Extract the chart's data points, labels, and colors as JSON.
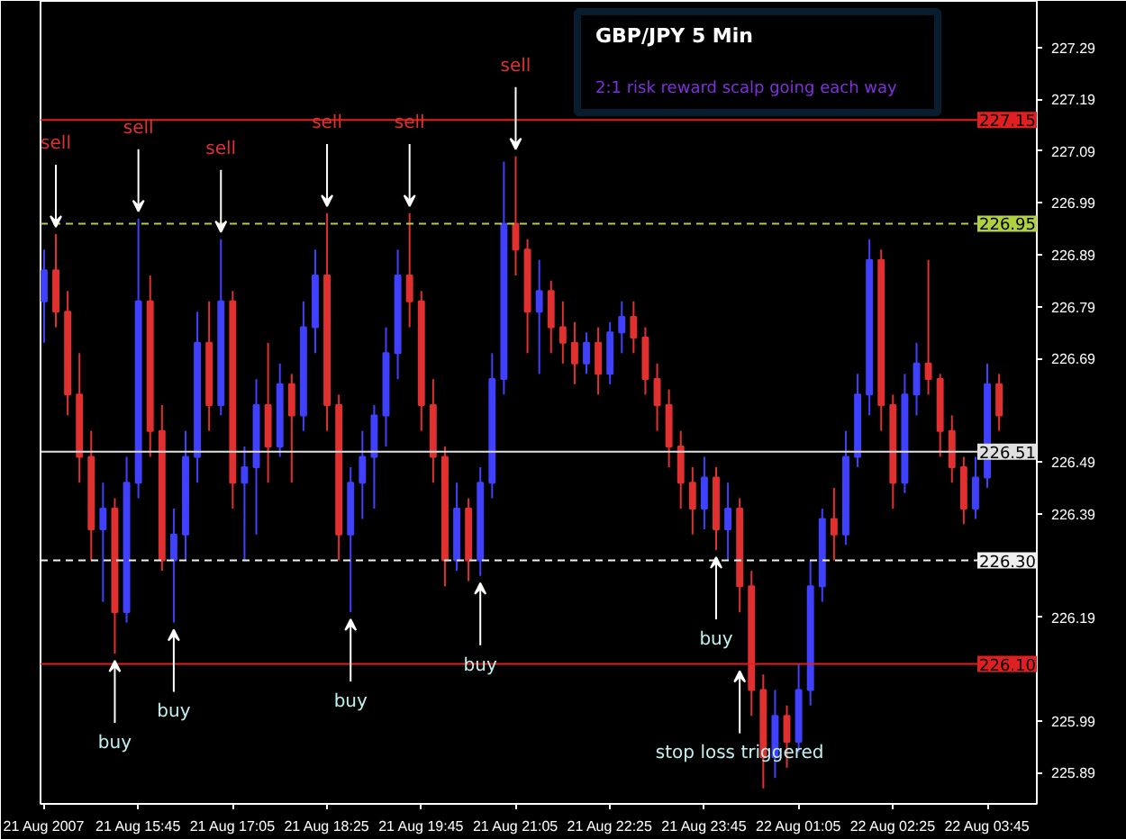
{
  "chart_data": {
    "type": "candlestick",
    "title": "GBP/JPY 5 Min",
    "subtitle": "2:1 risk reward scalp going each way",
    "x": [
      "2007-08-21T14:25",
      "2007-08-21T14:35",
      "2007-08-21T14:45",
      "2007-08-21T14:55",
      "2007-08-21T15:05",
      "2007-08-21T15:15",
      "2007-08-21T15:25",
      "2007-08-21T15:35",
      "2007-08-21T15:45",
      "2007-08-21T15:55",
      "2007-08-21T16:05",
      "2007-08-21T16:15",
      "2007-08-21T16:25",
      "2007-08-21T16:35",
      "2007-08-21T16:45",
      "2007-08-21T16:55",
      "2007-08-21T17:05",
      "2007-08-21T17:15",
      "2007-08-21T17:25",
      "2007-08-21T17:35",
      "2007-08-21T17:45",
      "2007-08-21T17:55",
      "2007-08-21T18:05",
      "2007-08-21T18:15",
      "2007-08-21T18:25",
      "2007-08-21T18:35",
      "2007-08-21T18:45",
      "2007-08-21T18:55",
      "2007-08-21T19:05",
      "2007-08-21T19:15",
      "2007-08-21T19:25",
      "2007-08-21T19:35",
      "2007-08-21T19:45",
      "2007-08-21T19:55",
      "2007-08-21T20:05",
      "2007-08-21T20:15",
      "2007-08-21T20:25",
      "2007-08-21T20:35",
      "2007-08-21T20:45",
      "2007-08-21T20:55",
      "2007-08-21T21:05",
      "2007-08-21T21:15",
      "2007-08-21T21:25",
      "2007-08-21T21:35",
      "2007-08-21T21:45",
      "2007-08-21T21:55",
      "2007-08-21T22:05",
      "2007-08-21T22:15",
      "2007-08-21T22:25",
      "2007-08-21T22:35",
      "2007-08-21T22:45",
      "2007-08-21T22:55",
      "2007-08-21T23:05",
      "2007-08-21T23:15",
      "2007-08-21T23:25",
      "2007-08-21T23:35",
      "2007-08-21T23:45",
      "2007-08-21T23:55",
      "2007-08-22T00:05",
      "2007-08-22T00:15",
      "2007-08-22T00:25",
      "2007-08-22T00:35",
      "2007-08-22T00:45",
      "2007-08-22T00:55",
      "2007-08-22T01:05",
      "2007-08-22T01:15",
      "2007-08-22T01:25",
      "2007-08-22T01:35",
      "2007-08-22T01:45",
      "2007-08-22T01:55",
      "2007-08-22T02:05",
      "2007-08-22T02:15",
      "2007-08-22T02:25",
      "2007-08-22T02:35",
      "2007-08-22T02:45",
      "2007-08-22T02:55",
      "2007-08-22T03:05",
      "2007-08-22T03:15",
      "2007-08-22T03:25",
      "2007-08-22T03:35",
      "2007-08-22T03:45",
      "2007-08-22T03:55"
    ],
    "ohlc": [
      [
        226.8,
        226.9,
        226.72,
        226.86
      ],
      [
        226.86,
        226.93,
        226.75,
        226.78
      ],
      [
        226.78,
        226.82,
        226.58,
        226.62
      ],
      [
        226.62,
        226.7,
        226.45,
        226.5
      ],
      [
        226.5,
        226.55,
        226.3,
        226.36
      ],
      [
        226.36,
        226.45,
        226.22,
        226.4
      ],
      [
        226.4,
        226.42,
        226.12,
        226.2
      ],
      [
        226.2,
        226.5,
        226.18,
        226.45
      ],
      [
        226.45,
        226.96,
        226.42,
        226.8
      ],
      [
        226.8,
        226.85,
        226.5,
        226.55
      ],
      [
        226.55,
        226.6,
        226.28,
        226.3
      ],
      [
        226.3,
        226.4,
        226.18,
        226.35
      ],
      [
        226.35,
        226.55,
        226.3,
        226.5
      ],
      [
        226.5,
        226.78,
        226.45,
        226.72
      ],
      [
        226.72,
        226.8,
        226.55,
        226.6
      ],
      [
        226.6,
        226.92,
        226.58,
        226.8
      ],
      [
        226.8,
        226.82,
        226.4,
        226.45
      ],
      [
        226.45,
        226.52,
        226.3,
        226.48
      ],
      [
        226.48,
        226.65,
        226.35,
        226.6
      ],
      [
        226.6,
        226.72,
        226.45,
        226.52
      ],
      [
        226.52,
        226.68,
        226.5,
        226.64
      ],
      [
        226.64,
        226.66,
        226.45,
        226.58
      ],
      [
        226.58,
        226.8,
        226.55,
        226.75
      ],
      [
        226.75,
        226.9,
        226.7,
        226.85
      ],
      [
        226.85,
        226.97,
        226.55,
        226.6
      ],
      [
        226.6,
        226.62,
        226.3,
        226.35
      ],
      [
        226.35,
        226.48,
        226.2,
        226.45
      ],
      [
        226.45,
        226.55,
        226.38,
        226.5
      ],
      [
        226.5,
        226.6,
        226.4,
        226.58
      ],
      [
        226.58,
        226.75,
        226.52,
        226.7
      ],
      [
        226.7,
        226.9,
        226.65,
        226.85
      ],
      [
        226.85,
        226.97,
        226.75,
        226.8
      ],
      [
        226.8,
        226.82,
        226.55,
        226.6
      ],
      [
        226.6,
        226.65,
        226.45,
        226.5
      ],
      [
        226.5,
        226.52,
        226.25,
        226.3
      ],
      [
        226.3,
        226.45,
        226.28,
        226.4
      ],
      [
        226.4,
        226.42,
        226.26,
        226.3
      ],
      [
        226.3,
        226.48,
        226.27,
        226.45
      ],
      [
        226.45,
        226.7,
        226.42,
        226.65
      ],
      [
        226.65,
        227.07,
        226.62,
        226.95
      ],
      [
        226.95,
        227.08,
        226.85,
        226.9
      ],
      [
        226.9,
        226.92,
        226.7,
        226.78
      ],
      [
        226.78,
        226.88,
        226.66,
        226.82
      ],
      [
        226.82,
        226.84,
        226.7,
        226.75
      ],
      [
        226.75,
        226.8,
        226.68,
        226.72
      ],
      [
        226.72,
        226.76,
        226.64,
        226.68
      ],
      [
        226.68,
        226.74,
        226.66,
        226.72
      ],
      [
        226.72,
        226.75,
        226.62,
        226.66
      ],
      [
        226.66,
        226.76,
        226.64,
        226.74
      ],
      [
        226.74,
        226.8,
        226.7,
        226.77
      ],
      [
        226.77,
        226.8,
        226.7,
        226.73
      ],
      [
        226.73,
        226.75,
        226.62,
        226.65
      ],
      [
        226.65,
        226.68,
        226.55,
        226.6
      ],
      [
        226.6,
        226.63,
        226.48,
        226.52
      ],
      [
        226.52,
        226.55,
        226.4,
        226.45
      ],
      [
        226.45,
        226.48,
        226.35,
        226.4
      ],
      [
        226.4,
        226.5,
        226.36,
        226.46
      ],
      [
        226.46,
        226.48,
        226.32,
        226.36
      ],
      [
        226.36,
        226.45,
        226.3,
        226.4
      ],
      [
        226.4,
        226.42,
        226.2,
        226.25
      ],
      [
        226.25,
        226.28,
        226.0,
        226.05
      ],
      [
        226.05,
        226.08,
        225.86,
        225.92
      ],
      [
        225.92,
        226.05,
        225.88,
        226.0
      ],
      [
        226.0,
        226.02,
        225.9,
        225.95
      ],
      [
        225.95,
        226.1,
        225.93,
        226.05
      ],
      [
        226.05,
        226.3,
        226.02,
        226.25
      ],
      [
        226.25,
        226.4,
        226.22,
        226.38
      ],
      [
        226.38,
        226.44,
        226.3,
        226.35
      ],
      [
        226.35,
        226.55,
        226.33,
        226.5
      ],
      [
        226.5,
        226.66,
        226.48,
        226.62
      ],
      [
        226.62,
        226.92,
        226.58,
        226.88
      ],
      [
        226.88,
        226.9,
        226.55,
        226.6
      ],
      [
        226.6,
        226.62,
        226.4,
        226.45
      ],
      [
        226.45,
        226.66,
        226.43,
        226.62
      ],
      [
        226.62,
        226.72,
        226.58,
        226.68
      ],
      [
        226.68,
        226.88,
        226.62,
        226.65
      ],
      [
        226.65,
        226.66,
        226.5,
        226.55
      ],
      [
        226.55,
        226.58,
        226.45,
        226.48
      ],
      [
        226.48,
        226.5,
        226.37,
        226.4
      ],
      [
        226.4,
        226.5,
        226.38,
        226.46
      ],
      [
        226.46,
        226.68,
        226.44,
        226.64
      ],
      [
        226.64,
        226.66,
        226.55,
        226.58
      ]
    ],
    "colors": [
      "#4040ff",
      "#e03030",
      "#e03030",
      "#e03030",
      "#e03030",
      "#4040ff",
      "#e03030",
      "#4040ff",
      "#4040ff",
      "#e03030",
      "#e03030",
      "#4040ff",
      "#4040ff",
      "#4040ff",
      "#e03030",
      "#4040ff",
      "#e03030",
      "#4040ff",
      "#4040ff",
      "#e03030",
      "#4040ff",
      "#e03030",
      "#4040ff",
      "#4040ff",
      "#e03030",
      "#e03030",
      "#4040ff",
      "#4040ff",
      "#4040ff",
      "#4040ff",
      "#4040ff",
      "#e03030",
      "#e03030",
      "#e03030",
      "#e03030",
      "#4040ff",
      "#e03030",
      "#4040ff",
      "#4040ff",
      "#4040ff",
      "#e03030",
      "#e03030",
      "#4040ff",
      "#e03030",
      "#e03030",
      "#e03030",
      "#4040ff",
      "#e03030",
      "#4040ff",
      "#4040ff",
      "#e03030",
      "#e03030",
      "#e03030",
      "#e03030",
      "#e03030",
      "#e03030",
      "#4040ff",
      "#e03030",
      "#4040ff",
      "#e03030",
      "#e03030",
      "#e03030",
      "#4040ff",
      "#e03030",
      "#4040ff",
      "#4040ff",
      "#4040ff",
      "#e03030",
      "#4040ff",
      "#4040ff",
      "#4040ff",
      "#e03030",
      "#e03030",
      "#4040ff",
      "#4040ff",
      "#e03030",
      "#e03030",
      "#e03030",
      "#e03030",
      "#4040ff",
      "#4040ff",
      "#e03030"
    ],
    "xlim": [
      "2007-08-21T14:22",
      "2007-08-22T04:27"
    ],
    "ylim": [
      225.83,
      227.38
    ],
    "xticks": [
      {
        "value": "2007-08-21T14:25",
        "label": "21 Aug 2007"
      },
      {
        "value": "2007-08-21T15:45",
        "label": "21 Aug 15:45"
      },
      {
        "value": "2007-08-21T17:05",
        "label": "21 Aug 17:05"
      },
      {
        "value": "2007-08-21T18:25",
        "label": "21 Aug 18:25"
      },
      {
        "value": "2007-08-21T19:45",
        "label": "21 Aug 19:45"
      },
      {
        "value": "2007-08-21T21:05",
        "label": "21 Aug 21:05"
      },
      {
        "value": "2007-08-21T22:25",
        "label": "21 Aug 22:25"
      },
      {
        "value": "2007-08-21T23:45",
        "label": "21 Aug 23:45"
      },
      {
        "value": "2007-08-22T01:05",
        "label": "22 Aug 01:05"
      },
      {
        "value": "2007-08-22T02:25",
        "label": "22 Aug 02:25"
      },
      {
        "value": "2007-08-22T03:45",
        "label": "22 Aug 03:45"
      }
    ],
    "yticks": [
      225.89,
      225.99,
      226.19,
      226.39,
      226.49,
      226.69,
      226.79,
      226.89,
      226.99,
      227.09,
      227.19,
      227.29
    ],
    "ref_lines": [
      {
        "axis": "y",
        "value": 227.15,
        "label": "227.15",
        "color": "#e02020",
        "line_style": "solid"
      },
      {
        "axis": "y",
        "value": 226.95,
        "label": "226.95",
        "color": "#b0d040",
        "line_style": "dashed"
      },
      {
        "axis": "y",
        "value": 226.51,
        "label": "226.51",
        "color": "#e0e0e0",
        "line_style": "solid"
      },
      {
        "axis": "y",
        "value": 226.3,
        "label": "226.30",
        "color": "#f0f0f0",
        "line_style": "dashed"
      },
      {
        "axis": "y",
        "value": 226.1,
        "label": "226.10",
        "color": "#e02020",
        "line_style": "solid"
      }
    ],
    "annotations": [
      {
        "text": "sell",
        "x": "2007-08-21T14:35",
        "y": 226.93
      },
      {
        "text": "sell",
        "x": "2007-08-21T15:45",
        "y": 226.96
      },
      {
        "text": "sell",
        "x": "2007-08-21T16:55",
        "y": 226.92
      },
      {
        "text": "sell",
        "x": "2007-08-21T18:25",
        "y": 226.97
      },
      {
        "text": "sell",
        "x": "2007-08-21T19:35",
        "y": 226.97
      },
      {
        "text": "sell",
        "x": "2007-08-21T21:05",
        "y": 227.08
      },
      {
        "text": "buy",
        "x": "2007-08-21T15:25",
        "y": 226.12
      },
      {
        "text": "buy",
        "x": "2007-08-21T16:15",
        "y": 226.18
      },
      {
        "text": "buy",
        "x": "2007-08-21T18:45",
        "y": 226.2
      },
      {
        "text": "buy",
        "x": "2007-08-21T20:35",
        "y": 226.27
      },
      {
        "text": "buy",
        "x": "2007-08-21T23:55",
        "y": 226.32
      },
      {
        "text": "stop loss triggered",
        "x": "2007-08-22T00:15",
        "y": 226.1
      }
    ],
    "grid": false
  }
}
